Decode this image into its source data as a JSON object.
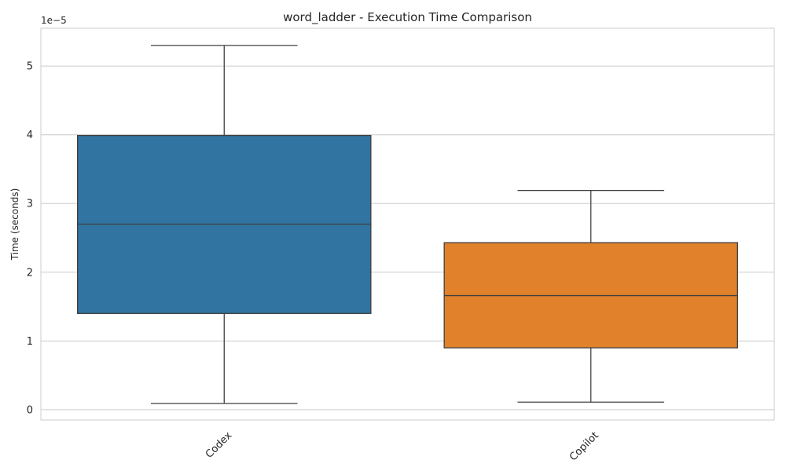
{
  "chart_data": {
    "type": "box",
    "title": "word_ladder - Execution Time Comparison",
    "xlabel": "",
    "ylabel": "Time (seconds)",
    "y_offset_label": "1e−5",
    "y_scale_factor": 1e-05,
    "ylim": [
      -0.15,
      5.55
    ],
    "yticks": [
      0,
      1,
      2,
      3,
      4,
      5
    ],
    "ytick_labels": [
      "0",
      "1",
      "2",
      "3",
      "4",
      "5"
    ],
    "grid": true,
    "categories": [
      "Codex",
      "Copilot"
    ],
    "boxes": [
      {
        "name": "Codex",
        "color": "#3274a1",
        "whisker_low": 0.09,
        "q1": 1.4,
        "median": 2.7,
        "q3": 3.99,
        "whisker_high": 5.3
      },
      {
        "name": "Copilot",
        "color": "#e1812c",
        "whisker_low": 0.11,
        "q1": 0.9,
        "median": 1.66,
        "q3": 2.43,
        "whisker_high": 3.19
      }
    ]
  }
}
